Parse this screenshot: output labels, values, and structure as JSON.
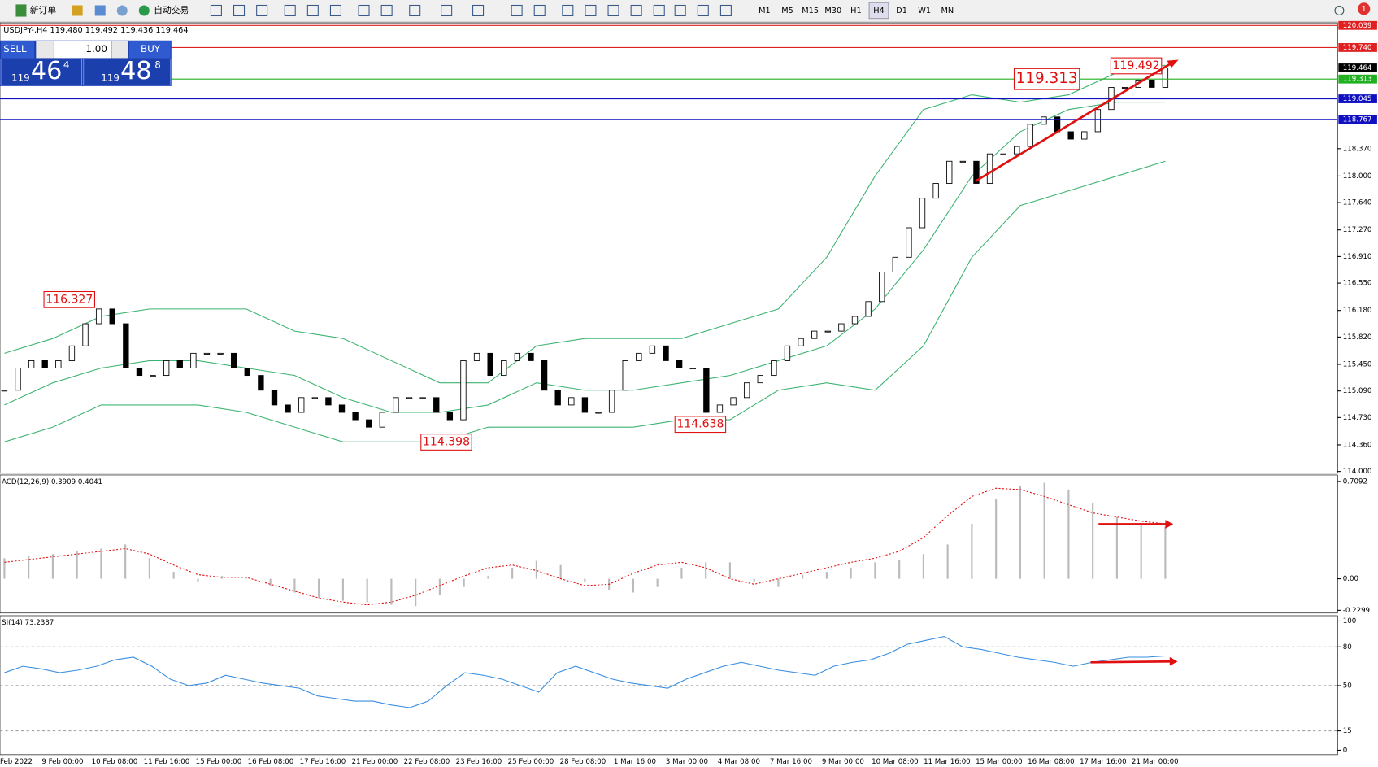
{
  "toolbar": {
    "new_order": "新订单",
    "auto_trade": "自动交易",
    "timeframes": [
      "M1",
      "M5",
      "M15",
      "M30",
      "H1",
      "H4",
      "D1",
      "W1",
      "MN"
    ],
    "notification": "1"
  },
  "symbol_info": "USDJPY-,H4  119.480 119.492 119.436 119.464",
  "trade_panel": {
    "sell": "SELL",
    "buy": "BUY",
    "lot": "1.00",
    "sell_big": "119",
    "sell_mid": "46",
    "sell_sup": "4",
    "buy_big": "119",
    "buy_mid": "48",
    "buy_sup": "8"
  },
  "x_labels": [
    "Feb 2022",
    "9 Feb 00:00",
    "10 Feb 08:00",
    "11 Feb 16:00",
    "15 Feb 00:00",
    "16 Feb 08:00",
    "17 Feb 16:00",
    "21 Feb 00:00",
    "22 Feb 08:00",
    "23 Feb 16:00",
    "25 Feb 00:00",
    "28 Feb 08:00",
    "1 Mar 16:00",
    "3 Mar 00:00",
    "4 Mar 08:00",
    "7 Mar 16:00",
    "9 Mar 00:00",
    "10 Mar 08:00",
    "11 Mar 16:00",
    "15 Mar 00:00",
    "16 Mar 08:00",
    "17 Mar 16:00",
    "21 Mar 00:00"
  ],
  "chart_data": [
    {
      "type": "candlestick",
      "ylim": [
        114.0,
        120.05
      ],
      "yticks": [
        {
          "value": 114.0,
          "label": "114.000"
        },
        {
          "value": 114.36,
          "label": "114.360"
        },
        {
          "value": 114.73,
          "label": "114.730"
        },
        {
          "value": 115.09,
          "label": "115.090"
        },
        {
          "value": 115.45,
          "label": "115.450"
        },
        {
          "value": 115.82,
          "label": "115.820"
        },
        {
          "value": 116.18,
          "label": "116.180"
        },
        {
          "value": 116.55,
          "label": "116.550"
        },
        {
          "value": 116.91,
          "label": "116.910"
        },
        {
          "value": 117.27,
          "label": "117.270"
        },
        {
          "value": 117.64,
          "label": "117.640"
        },
        {
          "value": 118.0,
          "label": "118.000"
        },
        {
          "value": 118.37,
          "label": "118.370"
        }
      ],
      "levels": [
        {
          "value": 120.039,
          "label": "120.039",
          "color": "#e02020"
        },
        {
          "value": 119.74,
          "label": "119.740",
          "color": "#e02020"
        },
        {
          "value": 119.464,
          "label": "119.464",
          "color": "#000000"
        },
        {
          "value": 119.313,
          "label": "119.313",
          "color": "#20b020"
        },
        {
          "value": 119.045,
          "label": "119.045",
          "color": "#1010c0"
        },
        {
          "value": 118.767,
          "label": "118.767",
          "color": "#1010c0"
        }
      ],
      "annotations": [
        {
          "value": 116.327,
          "label": "116.327"
        },
        {
          "value": 114.398,
          "label": "114.398"
        },
        {
          "value": 114.638,
          "label": "114.638"
        },
        {
          "value": 119.313,
          "label": "119.313"
        },
        {
          "value": 119.492,
          "label": "119.492"
        }
      ],
      "close": [
        115.1,
        115.4,
        115.5,
        115.4,
        115.5,
        115.7,
        116.0,
        116.2,
        116.0,
        115.4,
        115.3,
        115.3,
        115.5,
        115.4,
        115.6,
        115.6,
        115.6,
        115.4,
        115.3,
        115.1,
        114.9,
        114.8,
        115.0,
        115.0,
        114.9,
        114.8,
        114.7,
        114.6,
        114.8,
        115.0,
        115.0,
        115.0,
        114.8,
        114.7,
        115.5,
        115.6,
        115.3,
        115.5,
        115.6,
        115.5,
        115.1,
        114.9,
        115.0,
        114.8,
        114.8,
        115.1,
        115.5,
        115.6,
        115.7,
        115.5,
        115.4,
        115.4,
        114.8,
        114.9,
        115.0,
        115.2,
        115.3,
        115.5,
        115.7,
        115.8,
        115.9,
        115.9,
        116.0,
        116.1,
        116.3,
        116.7,
        116.9,
        117.3,
        117.7,
        117.9,
        118.2,
        118.2,
        117.9,
        118.3,
        118.3,
        118.4,
        118.7,
        118.8,
        118.6,
        118.5,
        118.6,
        118.9,
        119.2,
        119.2,
        119.3,
        119.2,
        119.464
      ],
      "bands": {
        "color": "#3cb371",
        "upper": [
          115.6,
          115.8,
          116.1,
          116.2,
          116.2,
          116.2,
          115.9,
          115.8,
          115.5,
          115.2,
          115.2,
          115.7,
          115.8,
          115.8,
          115.8,
          116.0,
          116.2,
          116.9,
          118.0,
          118.9,
          119.1,
          119.0,
          119.1,
          119.4,
          119.5
        ],
        "middle": [
          114.9,
          115.2,
          115.4,
          115.5,
          115.5,
          115.4,
          115.3,
          115.0,
          114.8,
          114.8,
          114.9,
          115.2,
          115.1,
          115.1,
          115.2,
          115.3,
          115.5,
          115.7,
          116.2,
          117.0,
          118.0,
          118.6,
          118.9,
          119.0,
          119.0
        ],
        "lower": [
          114.4,
          114.6,
          114.9,
          114.9,
          114.9,
          114.8,
          114.6,
          114.4,
          114.4,
          114.4,
          114.6,
          114.6,
          114.6,
          114.6,
          114.7,
          114.7,
          115.1,
          115.2,
          115.1,
          115.7,
          116.9,
          117.6,
          117.8,
          118.0,
          118.2
        ]
      }
    },
    {
      "type": "macd",
      "label": "ACD(12,26,9) 0.3909 0.4041",
      "ylim": [
        -0.25,
        0.75
      ],
      "yticks": [
        {
          "value": 0.7092,
          "label": "0.7092"
        },
        {
          "value": 0,
          "label": "0.00"
        },
        {
          "value": -0.2299,
          "label": "-0.2299"
        }
      ],
      "histogram": [
        0.15,
        0.17,
        0.18,
        0.2,
        0.22,
        0.25,
        0.15,
        0.05,
        -0.02,
        0.02,
        0.01,
        -0.05,
        -0.1,
        -0.14,
        -0.16,
        -0.17,
        -0.19,
        -0.2,
        -0.12,
        -0.06,
        0.02,
        0.08,
        0.13,
        0.1,
        -0.02,
        -0.08,
        -0.1,
        -0.06,
        0.08,
        0.12,
        0.12,
        -0.02,
        -0.06,
        0.03,
        0.05,
        0.08,
        0.12,
        0.14,
        0.18,
        0.25,
        0.4,
        0.58,
        0.68,
        0.7,
        0.65,
        0.55,
        0.45,
        0.4,
        0.38
      ],
      "signal": [
        0.12,
        0.14,
        0.16,
        0.18,
        0.2,
        0.22,
        0.18,
        0.1,
        0.03,
        0.01,
        0.01,
        -0.04,
        -0.09,
        -0.14,
        -0.17,
        -0.19,
        -0.17,
        -0.12,
        -0.05,
        0.02,
        0.08,
        0.1,
        0.06,
        0,
        -0.05,
        -0.04,
        0.04,
        0.1,
        0.12,
        0.08,
        0,
        -0.04,
        0,
        0.04,
        0.08,
        0.12,
        0.15,
        0.2,
        0.3,
        0.46,
        0.6,
        0.66,
        0.65,
        0.6,
        0.54,
        0.48,
        0.45,
        0.42,
        0.4
      ]
    },
    {
      "type": "rsi",
      "label": "SI(14) 73.2387",
      "ylim": [
        0,
        100
      ],
      "yticks": [
        100,
        80,
        50,
        15,
        0
      ],
      "levels": [
        80,
        50,
        15
      ],
      "values": [
        60,
        65,
        63,
        60,
        62,
        65,
        70,
        72,
        65,
        55,
        50,
        52,
        58,
        55,
        52,
        50,
        48,
        42,
        40,
        38,
        38,
        35,
        33,
        38,
        50,
        60,
        58,
        55,
        50,
        45,
        60,
        65,
        60,
        55,
        52,
        50,
        48,
        55,
        60,
        65,
        68,
        65,
        62,
        60,
        58,
        65,
        68,
        70,
        75,
        82,
        85,
        88,
        80,
        78,
        75,
        72,
        70,
        68,
        65,
        68,
        70,
        72,
        72,
        73
      ]
    }
  ]
}
